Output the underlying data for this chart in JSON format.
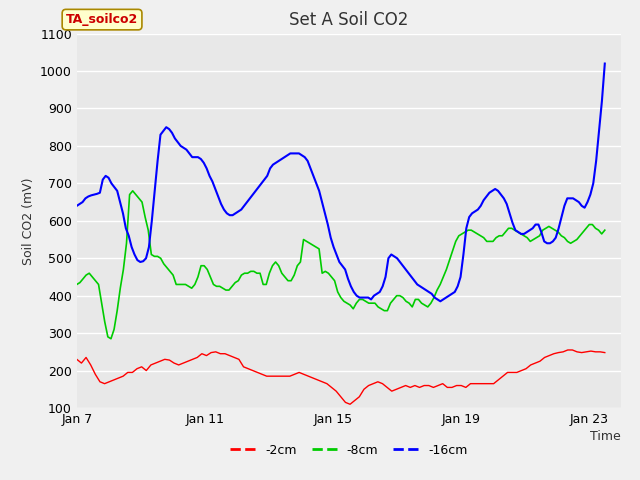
{
  "title": "Set A Soil CO2",
  "ylabel": "Soil CO2 (mV)",
  "xlabel": "Time",
  "legend_label": "TA_soilco2",
  "series_labels": [
    "-2cm",
    "-8cm",
    "-16cm"
  ],
  "series_colors": [
    "#ff0000",
    "#00cc00",
    "#0000ff"
  ],
  "ylim": [
    100,
    1100
  ],
  "yticks": [
    100,
    200,
    300,
    400,
    500,
    600,
    700,
    800,
    900,
    1000,
    1100
  ],
  "xtick_labels": [
    "Jan 7",
    "Jan 11",
    "Jan 15",
    "Jan 19",
    "Jan 23"
  ],
  "xtick_positions": [
    0,
    4,
    8,
    12,
    16
  ],
  "xlim": [
    0,
    17
  ],
  "fig_bg_color": "#f0f0f0",
  "plot_bg_color": "#e8e8e8",
  "grid_color": "#ffffff",
  "title_fontsize": 12,
  "axis_fontsize": 9,
  "legend_fontsize": 9,
  "red_data": [
    230,
    220,
    235,
    215,
    190,
    170,
    165,
    170,
    175,
    180,
    185,
    195,
    195,
    205,
    210,
    200,
    215,
    220,
    225,
    230,
    228,
    220,
    215,
    220,
    225,
    230,
    235,
    245,
    240,
    248,
    250,
    245,
    245,
    240,
    235,
    230,
    210,
    205,
    200,
    195,
    190,
    185,
    185,
    185,
    185,
    185,
    185,
    190,
    195,
    190,
    185,
    180,
    175,
    170,
    165,
    155,
    145,
    130,
    115,
    110,
    120,
    130,
    150,
    160,
    165,
    170,
    165,
    155,
    145,
    150,
    155,
    160,
    155,
    160,
    155,
    160,
    160,
    155,
    160,
    165,
    155,
    155,
    160,
    160,
    155,
    165,
    165,
    165,
    165,
    165,
    165,
    175,
    185,
    195,
    195,
    195,
    200,
    205,
    215,
    220,
    225,
    235,
    240,
    245,
    248,
    250,
    255,
    255,
    250,
    248,
    250,
    252,
    250,
    250,
    248
  ],
  "green_data": [
    430,
    435,
    445,
    455,
    460,
    450,
    440,
    430,
    380,
    330,
    290,
    285,
    310,
    360,
    420,
    470,
    540,
    670,
    680,
    670,
    660,
    650,
    610,
    575,
    510,
    505,
    505,
    500,
    485,
    475,
    465,
    455,
    430,
    430,
    430,
    430,
    425,
    420,
    430,
    450,
    480,
    480,
    470,
    450,
    430,
    425,
    425,
    420,
    415,
    415,
    425,
    435,
    440,
    455,
    460,
    460,
    465,
    465,
    460,
    460,
    430,
    430,
    460,
    480,
    490,
    480,
    460,
    450,
    440,
    440,
    455,
    480,
    490,
    550,
    545,
    540,
    535,
    530,
    525,
    460,
    465,
    460,
    450,
    440,
    410,
    395,
    385,
    380,
    375,
    365,
    380,
    390,
    390,
    385,
    380,
    380,
    380,
    370,
    365,
    360,
    360,
    380,
    390,
    400,
    400,
    395,
    385,
    380,
    370,
    390,
    390,
    380,
    375,
    370,
    380,
    395,
    415,
    430,
    450,
    470,
    495,
    520,
    545,
    560,
    565,
    570,
    575,
    575,
    570,
    565,
    560,
    555,
    545,
    545,
    545,
    555,
    560,
    560,
    570,
    580,
    580,
    575,
    570,
    565,
    560,
    555,
    545,
    550,
    555,
    560,
    575,
    580,
    585,
    580,
    575,
    570,
    560,
    555,
    545,
    540,
    545,
    550,
    560,
    570,
    580,
    590,
    590,
    580,
    575,
    565,
    575
  ],
  "blue_data": [
    640,
    645,
    650,
    660,
    665,
    668,
    670,
    672,
    675,
    710,
    720,
    715,
    700,
    690,
    680,
    650,
    620,
    580,
    560,
    530,
    510,
    495,
    490,
    492,
    500,
    530,
    600,
    680,
    760,
    830,
    840,
    850,
    845,
    835,
    820,
    810,
    800,
    795,
    790,
    780,
    770,
    770,
    770,
    765,
    755,
    740,
    720,
    705,
    685,
    665,
    645,
    630,
    620,
    615,
    615,
    620,
    625,
    630,
    640,
    650,
    660,
    670,
    680,
    690,
    700,
    710,
    720,
    740,
    750,
    755,
    760,
    765,
    770,
    775,
    780,
    780,
    780,
    780,
    775,
    770,
    760,
    740,
    720,
    700,
    680,
    650,
    620,
    590,
    555,
    530,
    510,
    490,
    480,
    470,
    445,
    425,
    410,
    400,
    395,
    395,
    395,
    395,
    390,
    400,
    405,
    410,
    425,
    450,
    500,
    510,
    505,
    500,
    490,
    480,
    470,
    460,
    450,
    440,
    430,
    425,
    420,
    415,
    410,
    405,
    395,
    390,
    385,
    390,
    395,
    400,
    405,
    410,
    425,
    450,
    510,
    580,
    610,
    620,
    625,
    630,
    640,
    655,
    665,
    675,
    680,
    685,
    680,
    670,
    660,
    645,
    620,
    595,
    575,
    570,
    565,
    565,
    570,
    575,
    580,
    590,
    590,
    570,
    545,
    540,
    540,
    545,
    555,
    580,
    610,
    640,
    660,
    660,
    660,
    655,
    650,
    640,
    635,
    650,
    670,
    700,
    760,
    840,
    920,
    1020
  ]
}
